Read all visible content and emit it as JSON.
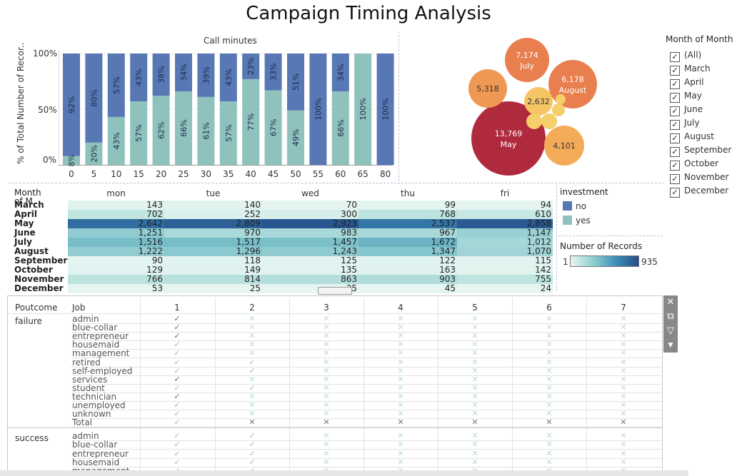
{
  "title": "Campaign Timing Analysis",
  "bar_chart": {
    "title": "Call minutes",
    "ylabel": "% of Total Number of Recor..",
    "yticks": [
      "100%",
      "50%",
      "0%"
    ]
  },
  "chart_data": [
    {
      "type": "bar",
      "stacked": true,
      "title": "Call minutes",
      "ylabel": "% of Total Number of Recor..",
      "ylim": [
        0,
        100
      ],
      "categories": [
        "0",
        "5",
        "10",
        "15",
        "20",
        "25",
        "30",
        "35",
        "40",
        "45",
        "50",
        "55",
        "60",
        "65",
        "80"
      ],
      "series": [
        {
          "name": "no",
          "color": "#5778b4",
          "values": [
            92,
            80,
            57,
            43,
            38,
            34,
            39,
            43,
            23,
            33,
            51,
            100,
            34,
            0,
            100
          ]
        },
        {
          "name": "yes",
          "color": "#8fc2bd",
          "values": [
            8,
            20,
            43,
            57,
            62,
            66,
            61,
            57,
            77,
            67,
            49,
            0,
            66,
            100,
            0
          ]
        }
      ],
      "labels_no": [
        "92%",
        "80%",
        "57%",
        "43%",
        "38%",
        "34%",
        "39%",
        "43%",
        "23%",
        "33%",
        "51%",
        "100%",
        "34%",
        "",
        "100%"
      ],
      "labels_yes": [
        "8%",
        "20%",
        "43%",
        "57%",
        "62%",
        "66%",
        "61%",
        "57%",
        "77%",
        "67%",
        "49%",
        "",
        "66%",
        "100%",
        ""
      ]
    },
    {
      "type": "bubble",
      "bubbles": [
        {
          "value": "13,769",
          "label": "May",
          "color": "#b02a3e"
        },
        {
          "value": "7,174",
          "label": "July",
          "color": "#e97f4f"
        },
        {
          "value": "6,178",
          "label": "August",
          "color": "#e97f4f"
        },
        {
          "value": "5,318",
          "label": "",
          "color": "#ef9853"
        },
        {
          "value": "4,101",
          "label": "",
          "color": "#f3ab5a"
        },
        {
          "value": "2,632",
          "label": "",
          "color": "#f5c465"
        },
        {
          "value": "",
          "label": "",
          "color": "#f6cf6b"
        },
        {
          "value": "",
          "label": "",
          "color": "#f6cf6b"
        },
        {
          "value": "",
          "label": "",
          "color": "#f6cf6b"
        },
        {
          "value": "",
          "label": "",
          "color": "#f6cf6b"
        }
      ]
    },
    {
      "type": "heatmap",
      "row_header": "Month of M..",
      "columns": [
        "mon",
        "tue",
        "wed",
        "thu",
        "fri"
      ],
      "rows": [
        "March",
        "April",
        "May",
        "June",
        "July",
        "August",
        "September",
        "October",
        "November",
        "December"
      ],
      "values": [
        [
          "143",
          "140",
          "70",
          "99",
          "94"
        ],
        [
          "702",
          "252",
          "300",
          "768",
          "610"
        ],
        [
          "2,642",
          "2,809",
          "2,923",
          "2,537",
          "2,858"
        ],
        [
          "1,251",
          "970",
          "983",
          "967",
          "1,147"
        ],
        [
          "1,516",
          "1,517",
          "1,457",
          "1,672",
          "1,012"
        ],
        [
          "1,222",
          "1,296",
          "1,243",
          "1,347",
          "1,070"
        ],
        [
          "90",
          "118",
          "125",
          "122",
          "115"
        ],
        [
          "129",
          "149",
          "135",
          "163",
          "142"
        ],
        [
          "766",
          "814",
          "863",
          "903",
          "755"
        ],
        [
          "53",
          "25",
          "35",
          "45",
          "24"
        ]
      ]
    }
  ],
  "filter": {
    "title": "Month of Month",
    "items": [
      "(All)",
      "March",
      "April",
      "May",
      "June",
      "July",
      "August",
      "September",
      "October",
      "November",
      "December"
    ]
  },
  "investment_legend": {
    "title": "investment",
    "items": [
      {
        "label": "no",
        "color": "#5778b4"
      },
      {
        "label": "yes",
        "color": "#8fc2bd"
      }
    ]
  },
  "records_legend": {
    "title": "Number of Records",
    "min": "1",
    "max": "935"
  },
  "crosstab": {
    "header": {
      "poutcome": "Poutcome",
      "job": "Job",
      "cols": [
        "1",
        "2",
        "3",
        "4",
        "5",
        "6",
        "7"
      ]
    },
    "groups": [
      {
        "name": "failure",
        "jobs": [
          "admin",
          "blue-collar",
          "entrepreneur",
          "housemaid",
          "management",
          "retired",
          "self-employed",
          "services",
          "student",
          "technician",
          "unemployed",
          "unknown",
          "Total"
        ]
      },
      {
        "name": "success",
        "jobs": [
          "admin",
          "blue-collar",
          "entrepreneur",
          "housemaid",
          "management"
        ]
      }
    ],
    "marks": {
      "failure": [
        [
          "v",
          "x",
          "x",
          "x",
          "x",
          "x",
          "x"
        ],
        [
          "v",
          "x",
          "x",
          "x",
          "x",
          "x",
          "x"
        ],
        [
          "v",
          "x",
          "x",
          "x",
          "x",
          "x",
          "x"
        ],
        [
          "v",
          "x",
          "x",
          "x",
          "x",
          "x",
          "x"
        ],
        [
          "v",
          "x",
          "x",
          "x",
          "x",
          "x",
          "x"
        ],
        [
          "v",
          "v",
          "x",
          "x",
          "x",
          "x",
          "x"
        ],
        [
          "v",
          "v",
          "x",
          "x",
          "x",
          "x",
          "x"
        ],
        [
          "v",
          "x",
          "x",
          "x",
          "x",
          "x",
          "x"
        ],
        [
          "v",
          "v",
          "x",
          "x",
          "x",
          "x",
          "x"
        ],
        [
          "v",
          "x",
          "x",
          "x",
          "x",
          "x",
          "x"
        ],
        [
          "v",
          "x",
          "x",
          "x",
          "x",
          "x",
          "x"
        ],
        [
          "v",
          "x",
          "x",
          "x",
          "x",
          "x",
          "x"
        ],
        [
          "v",
          "X",
          "X",
          "X",
          "X",
          "X",
          "X"
        ]
      ],
      "success": [
        [
          "v",
          "v",
          "x",
          "x",
          "x",
          "x",
          "x"
        ],
        [
          "v",
          "v",
          "x",
          "x",
          "x",
          "x",
          "x"
        ],
        [
          "v",
          "v",
          "x",
          "x",
          "x",
          "x",
          "x"
        ],
        [
          "v",
          "v",
          "x",
          "x",
          "x",
          "x",
          "x"
        ],
        [
          "v",
          "v",
          "x",
          "x",
          "x",
          "x",
          "x"
        ]
      ]
    }
  }
}
